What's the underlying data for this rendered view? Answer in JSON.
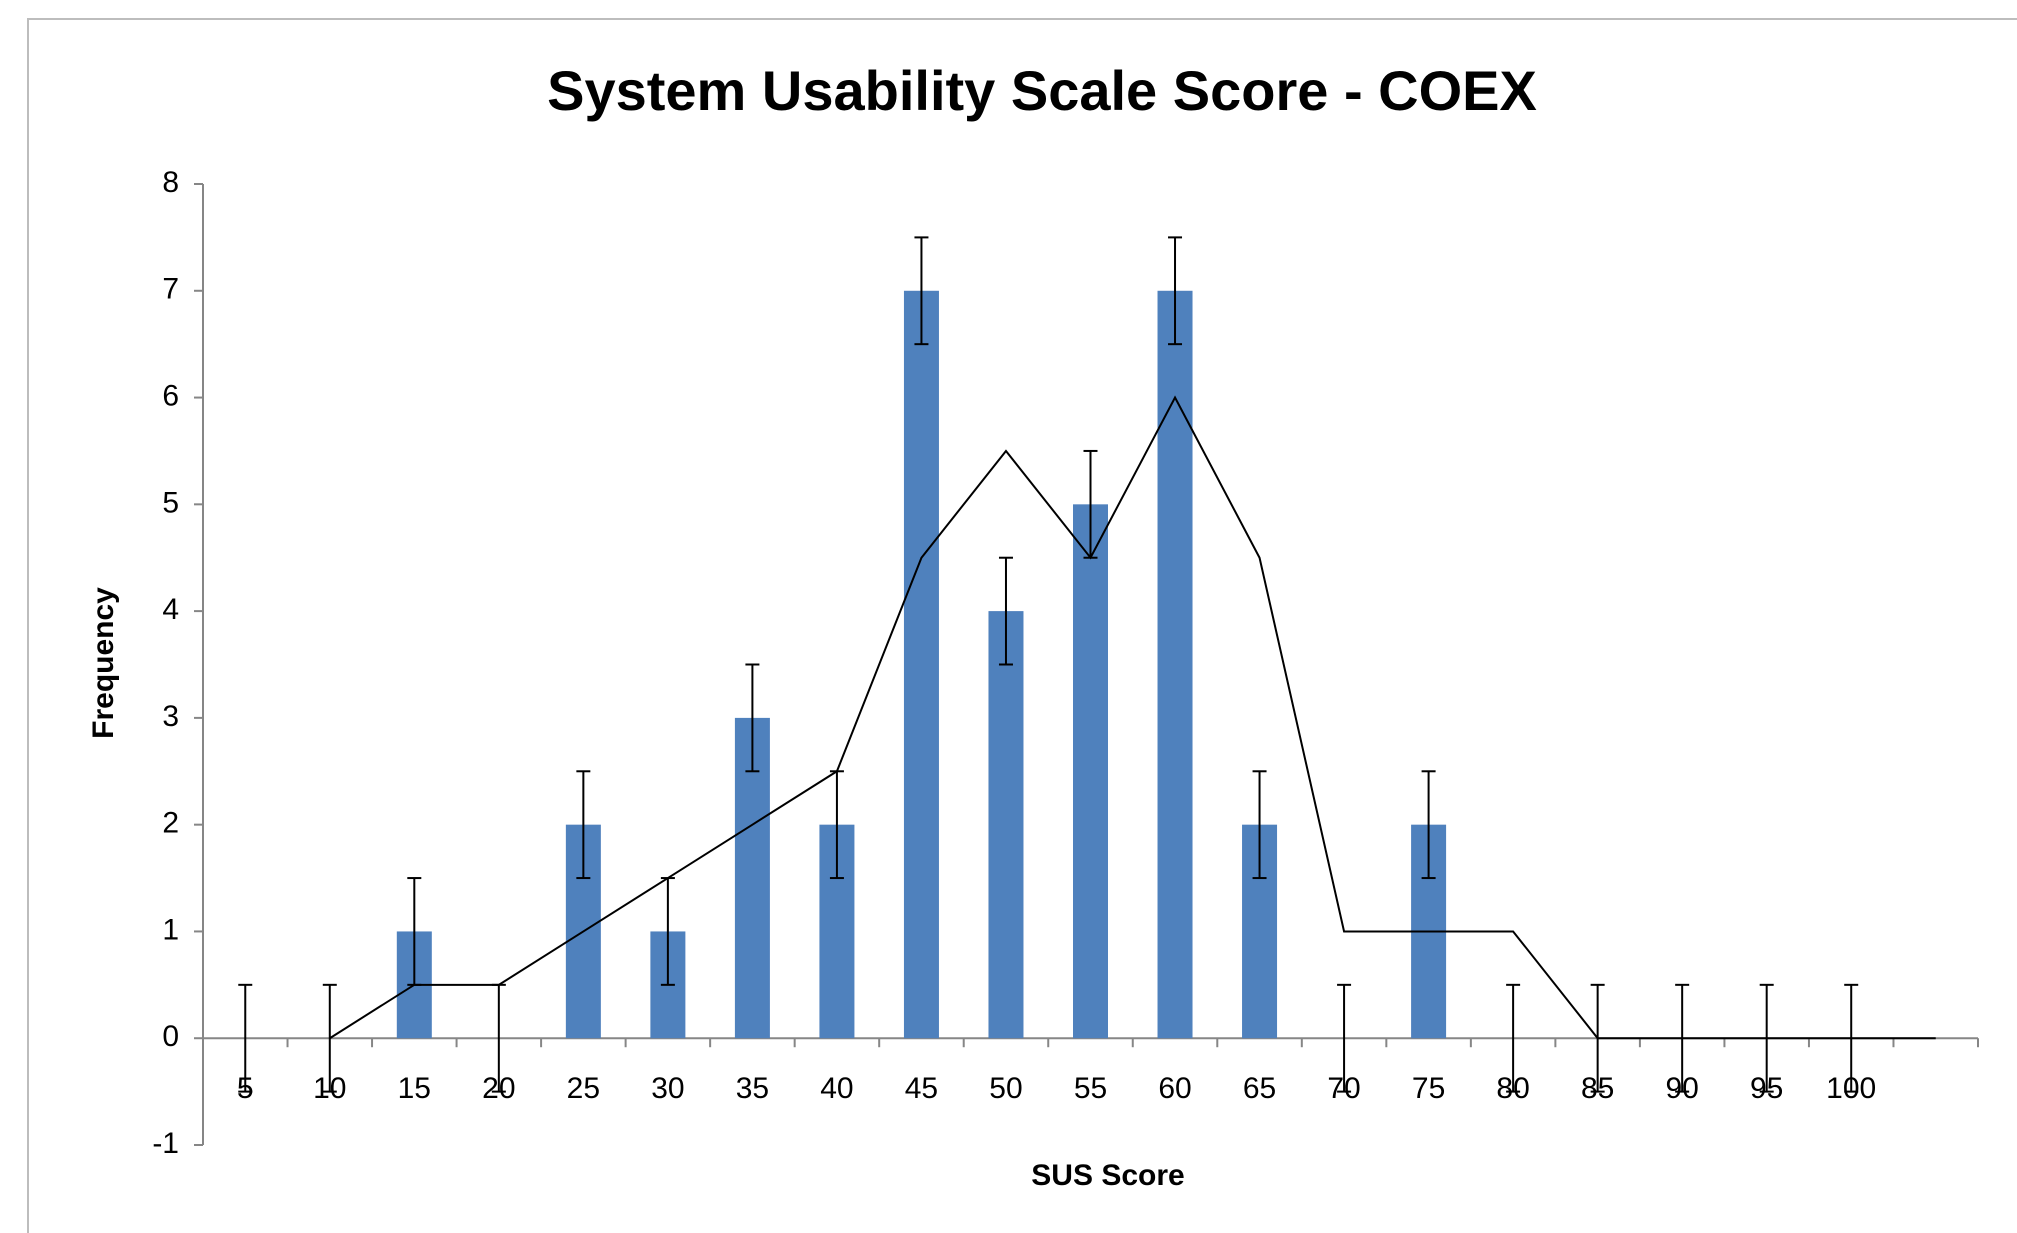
{
  "chart_data": {
    "type": "bar",
    "title": "System Usability Scale Score - COEX",
    "x_label": "SUS Score",
    "y_label": "Frequency",
    "categories": [
      "5",
      "10",
      "15",
      "20",
      "25",
      "30",
      "35",
      "40",
      "45",
      "50",
      "55",
      "60",
      "65",
      "70",
      "75",
      "80",
      "85",
      "90",
      "95",
      "100",
      null
    ],
    "series": [
      {
        "type": "bar",
        "color": "#4f81bd",
        "values": [
          0,
          0,
          1,
          0,
          2,
          1,
          3,
          2,
          7,
          4,
          5,
          7,
          2,
          0,
          2,
          0,
          0,
          0,
          0,
          0,
          null
        ],
        "errors": [
          0.5,
          0.5,
          0.5,
          0.5,
          0.5,
          0.5,
          0.5,
          0.5,
          0.5,
          0.5,
          0.5,
          0.5,
          0.5,
          0.5,
          0.5,
          0.5,
          0.5,
          0.5,
          0.5,
          0.5,
          null
        ]
      },
      {
        "type": "line",
        "color": "#000000",
        "values": [
          null,
          0,
          0.5,
          0.5,
          1,
          1.5,
          2,
          2.5,
          4.5,
          5.5,
          4.5,
          6,
          4.5,
          1,
          1,
          1,
          0,
          0,
          0,
          0,
          0
        ]
      }
    ],
    "ylim": [
      -1,
      8
    ],
    "yticks": [
      -1,
      0,
      1,
      2,
      3,
      4,
      5,
      6,
      7,
      8
    ],
    "grid": false
  }
}
